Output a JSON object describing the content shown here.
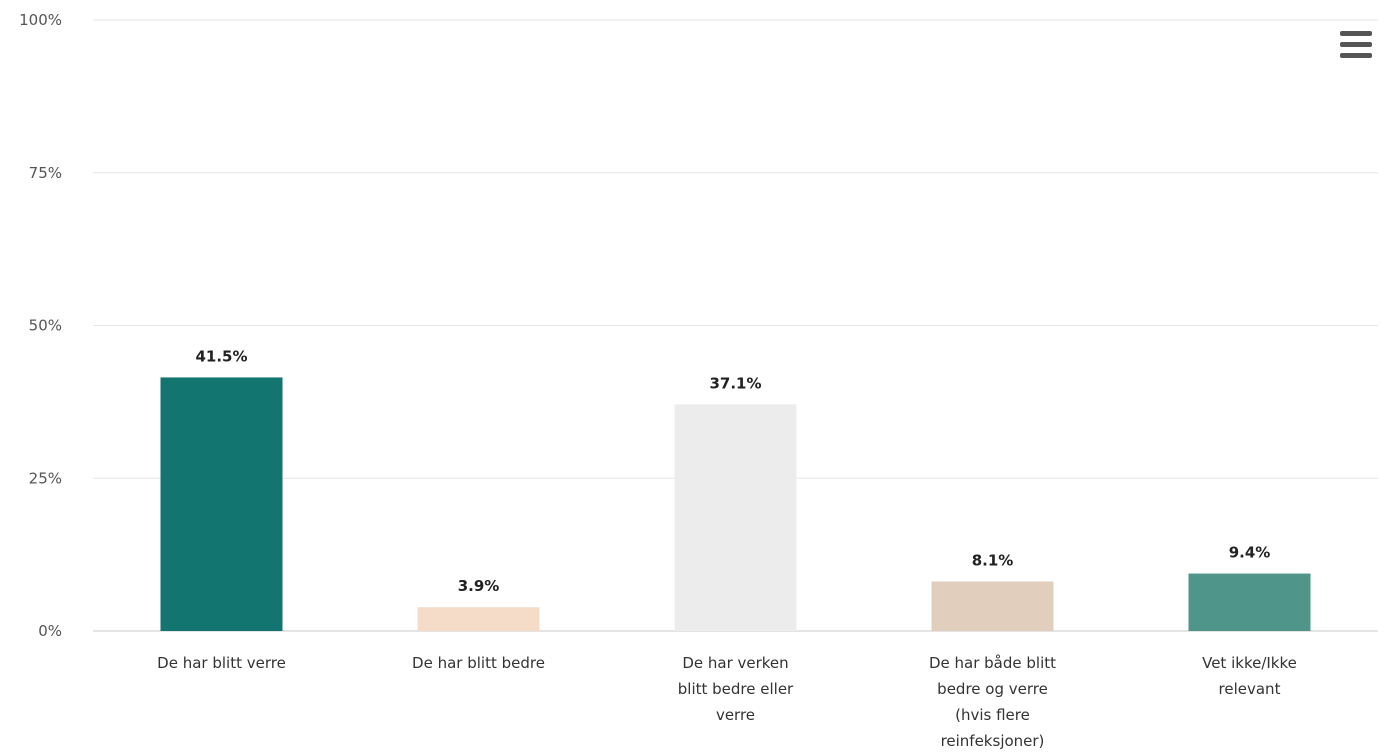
{
  "chart_data": {
    "type": "bar",
    "categories": [
      [
        "De har blitt verre"
      ],
      [
        "De har blitt bedre"
      ],
      [
        "De har verken",
        "blitt bedre eller",
        "verre"
      ],
      [
        "De har både blitt",
        "bedre og verre",
        "(hvis flere",
        "reinfeksjoner)"
      ],
      [
        "Vet ikke/Ikke",
        "relevant"
      ]
    ],
    "values": [
      41.5,
      3.9,
      37.1,
      8.1,
      9.4
    ],
    "data_labels": [
      "41.5%",
      "3.9%",
      "37.1%",
      "8.1%",
      "9.4%"
    ],
    "colors": [
      "#137570",
      "#f4dcc8",
      "#ececec",
      "#e2cebd",
      "#4f9589"
    ],
    "ylim": [
      0,
      100
    ],
    "yticks": [
      0,
      25,
      50,
      75,
      100
    ],
    "ytick_labels": [
      "0%",
      "25%",
      "50%",
      "75%",
      "100%"
    ],
    "grid": true,
    "legend": false
  },
  "menu": {
    "icon": "hamburger-menu-icon"
  }
}
